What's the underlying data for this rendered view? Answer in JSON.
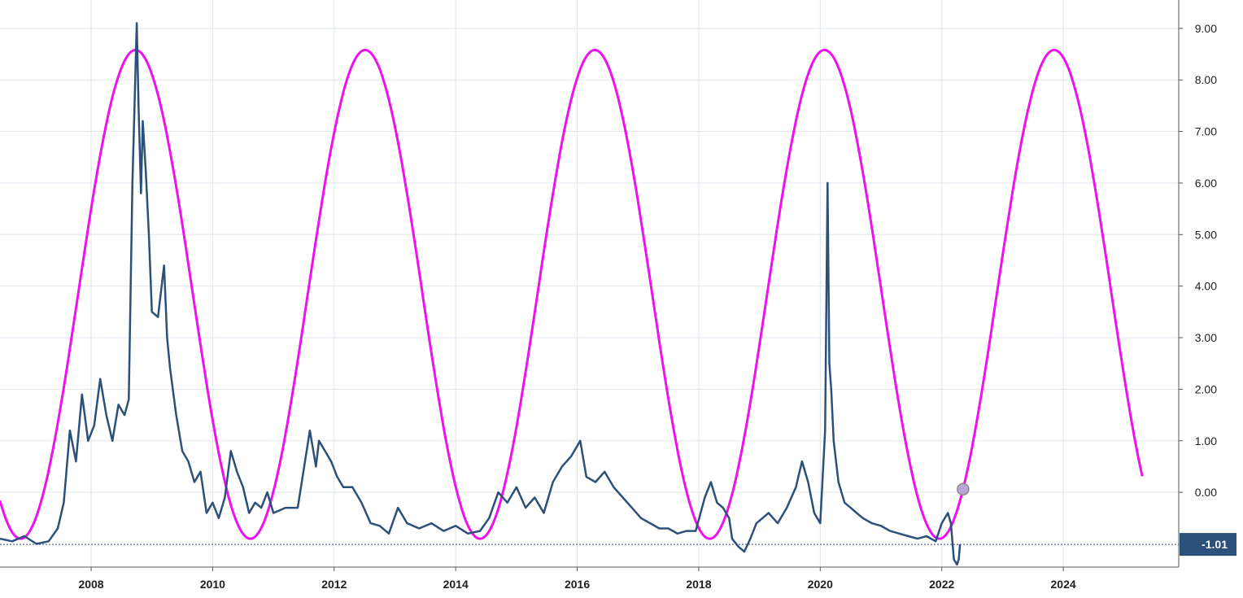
{
  "chart_data": {
    "type": "line",
    "title": "",
    "xlabel": "",
    "ylabel": "",
    "xlim": [
      2006.5,
      2025.9
    ],
    "ylim": [
      -1.45,
      9.55
    ],
    "y_ticks": [
      0,
      1,
      2,
      3,
      4,
      5,
      6,
      7,
      8,
      9
    ],
    "y_tick_labels": [
      "0.00",
      "1.00",
      "2.00",
      "3.00",
      "4.00",
      "5.00",
      "6.00",
      "7.00",
      "8.00",
      "9.00"
    ],
    "x_ticks": [
      2008,
      2010,
      2012,
      2014,
      2016,
      2018,
      2020,
      2022,
      2024
    ],
    "x_tick_labels": [
      "2008",
      "2010",
      "2012",
      "2014",
      "2016",
      "2018",
      "2020",
      "2022",
      "2024"
    ],
    "grid": true,
    "last_value_label": "-1.01",
    "last_value": -1.01,
    "series": [
      {
        "color": "#2b5079",
        "style": "solid",
        "x": [
          2006.5,
          2006.7,
          2006.9,
          2007.1,
          2007.3,
          2007.45,
          2007.55,
          2007.65,
          2007.75,
          2007.85,
          2007.95,
          2008.05,
          2008.15,
          2008.25,
          2008.35,
          2008.45,
          2008.55,
          2008.62,
          2008.68,
          2008.75,
          2008.78,
          2008.82,
          2008.85,
          2008.9,
          2008.95,
          2009.0,
          2009.1,
          2009.2,
          2009.25,
          2009.3,
          2009.4,
          2009.5,
          2009.6,
          2009.7,
          2009.8,
          2009.9,
          2010.0,
          2010.1,
          2010.2,
          2010.3,
          2010.4,
          2010.5,
          2010.6,
          2010.7,
          2010.8,
          2010.9,
          2011.0,
          2011.2,
          2011.4,
          2011.6,
          2011.7,
          2011.75,
          2011.85,
          2011.95,
          2012.05,
          2012.15,
          2012.3,
          2012.45,
          2012.6,
          2012.75,
          2012.9,
          2013.05,
          2013.2,
          2013.4,
          2013.6,
          2013.8,
          2014.0,
          2014.2,
          2014.4,
          2014.55,
          2014.7,
          2014.85,
          2015.0,
          2015.15,
          2015.3,
          2015.45,
          2015.6,
          2015.75,
          2015.9,
          2016.0,
          2016.05,
          2016.15,
          2016.3,
          2016.45,
          2016.6,
          2016.75,
          2016.9,
          2017.05,
          2017.2,
          2017.35,
          2017.5,
          2017.65,
          2017.8,
          2017.95,
          2018.1,
          2018.2,
          2018.3,
          2018.4,
          2018.5,
          2018.55,
          2018.65,
          2018.75,
          2018.85,
          2018.95,
          2019.05,
          2019.15,
          2019.3,
          2019.45,
          2019.6,
          2019.7,
          2019.8,
          2019.9,
          2020.0,
          2020.08,
          2020.12,
          2020.15,
          2020.18,
          2020.22,
          2020.3,
          2020.4,
          2020.5,
          2020.6,
          2020.7,
          2020.85,
          2021.0,
          2021.15,
          2021.3,
          2021.45,
          2021.6,
          2021.75,
          2021.9,
          2022.0,
          2022.05,
          2022.1,
          2022.15,
          2022.2,
          2022.25,
          2022.28,
          2022.3
        ],
        "y": [
          -0.9,
          -0.95,
          -0.85,
          -1.0,
          -0.95,
          -0.7,
          -0.2,
          1.2,
          0.6,
          1.9,
          1.0,
          1.3,
          2.2,
          1.5,
          1.0,
          1.7,
          1.5,
          1.8,
          6.0,
          9.1,
          7.5,
          5.8,
          7.2,
          6.2,
          5.0,
          3.5,
          3.4,
          4.4,
          3.0,
          2.4,
          1.5,
          0.8,
          0.6,
          0.2,
          0.4,
          -0.4,
          -0.2,
          -0.5,
          -0.1,
          0.8,
          0.4,
          0.1,
          -0.4,
          -0.2,
          -0.3,
          0.0,
          -0.4,
          -0.3,
          -0.3,
          1.2,
          0.5,
          1.0,
          0.8,
          0.6,
          0.3,
          0.1,
          0.1,
          -0.2,
          -0.6,
          -0.65,
          -0.8,
          -0.3,
          -0.6,
          -0.7,
          -0.6,
          -0.75,
          -0.65,
          -0.8,
          -0.75,
          -0.5,
          0.0,
          -0.2,
          0.1,
          -0.3,
          -0.1,
          -0.4,
          0.2,
          0.5,
          0.7,
          0.9,
          1.0,
          0.3,
          0.2,
          0.4,
          0.1,
          -0.1,
          -0.3,
          -0.5,
          -0.6,
          -0.7,
          -0.7,
          -0.8,
          -0.75,
          -0.75,
          -0.1,
          0.2,
          -0.2,
          -0.3,
          -0.5,
          -0.9,
          -1.05,
          -1.15,
          -0.9,
          -0.6,
          -0.5,
          -0.4,
          -0.6,
          -0.3,
          0.1,
          0.6,
          0.2,
          -0.4,
          -0.6,
          1.2,
          6.0,
          2.5,
          2.0,
          1.0,
          0.2,
          -0.2,
          -0.3,
          -0.4,
          -0.5,
          -0.6,
          -0.65,
          -0.75,
          -0.8,
          -0.85,
          -0.9,
          -0.85,
          -0.95,
          -0.6,
          -0.5,
          -0.4,
          -0.6,
          -1.3,
          -1.4,
          -1.3,
          -1.01
        ]
      },
      {
        "color": "#ee11ee",
        "style": "solid",
        "model": "sine",
        "min": -0.9,
        "max": 8.58,
        "period_years": 3.78,
        "peak_at": 2008.73,
        "x_range": [
          2006.5,
          2025.3
        ],
        "marker_x": 2022.35
      }
    ]
  }
}
